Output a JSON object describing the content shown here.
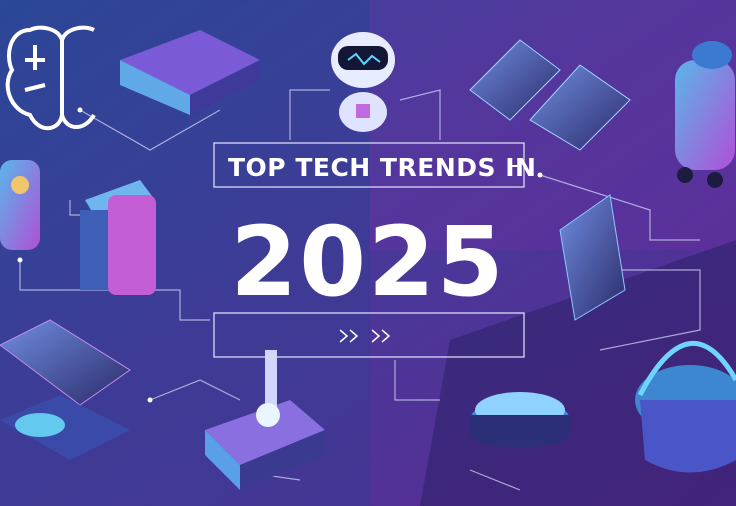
{
  "header": {
    "title": "TOP TECH TRENDS IN",
    "year": "2025"
  }
}
